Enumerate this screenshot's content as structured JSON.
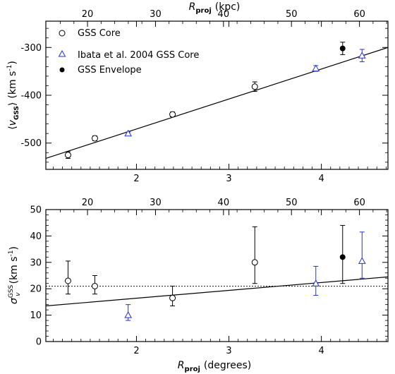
{
  "chart_data": [
    {
      "type": "scatter",
      "xlim": [
        1.02,
        4.72
      ],
      "ylim": [
        -555,
        -245
      ],
      "top_axis": {
        "label_main": "R",
        "label_sub": "proj",
        "label_unit": "(kpc)",
        "ticks": [
          20,
          30,
          40,
          50,
          60
        ]
      },
      "xticks": [
        2,
        3,
        4
      ],
      "yticks": [
        -300,
        -400,
        -500
      ],
      "ylabel_parts": {
        "open": "⟨",
        "v": "v",
        "sub": "GSS",
        "close": "⟩",
        "unit": "(km s",
        "exp": "-1",
        "end": ")"
      },
      "legend": {
        "position": "top-left",
        "entries": [
          {
            "marker": "open-circle",
            "label": "GSS Core"
          },
          {
            "marker": "open-triangle",
            "label": "Ibata et al. 2004 GSS Core"
          },
          {
            "marker": "filled-circle",
            "label": "GSS Envelope"
          }
        ]
      },
      "series": [
        {
          "name": "GSS Core",
          "marker": "open-circle",
          "color": "#000000",
          "points": [
            {
              "x": 1.26,
              "y": -525,
              "err": 7
            },
            {
              "x": 1.55,
              "y": -490,
              "err": 5
            },
            {
              "x": 2.39,
              "y": -440,
              "err": 5
            },
            {
              "x": 3.28,
              "y": -382,
              "err": 10
            }
          ]
        },
        {
          "name": "Ibata et al. 2004 GSS Core",
          "marker": "open-triangle",
          "color": "#2233cc",
          "points": [
            {
              "x": 1.91,
              "y": -480,
              "err": 3
            },
            {
              "x": 3.94,
              "y": -344,
              "err": 6
            },
            {
              "x": 4.44,
              "y": -317,
              "err": 13
            }
          ]
        },
        {
          "name": "GSS Envelope",
          "marker": "filled-circle",
          "color": "#000000",
          "points": [
            {
              "x": 4.23,
              "y": -302,
              "err": 13
            }
          ]
        }
      ],
      "fit_line": {
        "x": [
          1.02,
          4.72
        ],
        "y": [
          -532,
          -300
        ]
      }
    },
    {
      "type": "scatter",
      "xlim": [
        1.02,
        4.72
      ],
      "ylim": [
        0,
        50
      ],
      "top_axis": {
        "ticks": [
          20,
          30,
          40,
          50,
          60
        ]
      },
      "xticks": [
        2,
        3,
        4
      ],
      "yticks": [
        0,
        10,
        20,
        30,
        40,
        50
      ],
      "xlabel_parts": {
        "main": "R",
        "sub": "proj",
        "unit": "(degrees)"
      },
      "ylabel_parts": {
        "sigma": "σ",
        "sup": "GSS",
        "sub": "v",
        "unit": "(km s",
        "exp": "-1",
        "end": ")"
      },
      "series": [
        {
          "name": "GSS Core",
          "marker": "open-circle",
          "color": "#000000",
          "points": [
            {
              "x": 1.26,
              "y": 23,
              "lo": 18,
              "hi": 30.5
            },
            {
              "x": 1.55,
              "y": 21,
              "lo": 18,
              "hi": 25
            },
            {
              "x": 2.39,
              "y": 16.5,
              "lo": 13.5,
              "hi": 21
            },
            {
              "x": 3.28,
              "y": 30,
              "lo": 22,
              "hi": 43.5
            }
          ]
        },
        {
          "name": "Ibata et al. 2004 GSS Core",
          "marker": "open-triangle",
          "color": "#2233cc",
          "points": [
            {
              "x": 1.91,
              "y": 10,
              "lo": 8,
              "hi": 14
            },
            {
              "x": 3.94,
              "y": 22,
              "lo": 17.5,
              "hi": 28.5
            },
            {
              "x": 4.44,
              "y": 30.5,
              "lo": 24,
              "hi": 41.5
            }
          ]
        },
        {
          "name": "GSS Envelope",
          "marker": "filled-circle",
          "color": "#000000",
          "points": [
            {
              "x": 4.23,
              "y": 32,
              "lo": 22,
              "hi": 44
            }
          ]
        }
      ],
      "fit_line": {
        "x": [
          1.02,
          4.72
        ],
        "y": [
          13.5,
          24.5
        ]
      },
      "reference_line": {
        "y": 21,
        "style": "dotted"
      }
    }
  ]
}
